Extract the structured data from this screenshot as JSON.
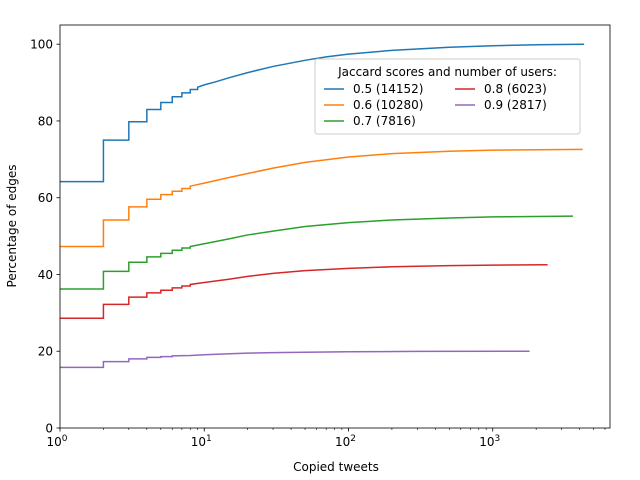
{
  "chart_data": {
    "type": "line",
    "step": true,
    "xscale": "log",
    "xlim": [
      1,
      6500
    ],
    "ylim": [
      0,
      105
    ],
    "xlabel": "Copied tweets",
    "ylabel": "Percentage of edges",
    "x_ticks": [
      {
        "value": 1,
        "base": "10",
        "exp": "0"
      },
      {
        "value": 10,
        "base": "10",
        "exp": "1"
      },
      {
        "value": 100,
        "base": "10",
        "exp": "2"
      },
      {
        "value": 1000,
        "base": "10",
        "exp": "3"
      }
    ],
    "y_ticks": [
      0,
      20,
      40,
      60,
      80,
      100
    ],
    "grid": false,
    "legend": {
      "title": "Jaccard scores and number of users:",
      "placement": "upper-right",
      "columns": 2
    },
    "series": [
      {
        "name": "0.5 (14152)",
        "color": "#1f77b4",
        "points": [
          [
            1,
            64.2
          ],
          [
            2,
            64.2
          ],
          [
            2,
            75
          ],
          [
            3,
            75
          ],
          [
            3,
            79.8
          ],
          [
            4,
            79.8
          ],
          [
            4,
            83
          ],
          [
            5,
            83
          ],
          [
            5,
            84.8
          ],
          [
            6,
            84.8
          ],
          [
            6,
            86.3
          ],
          [
            7,
            86.3
          ],
          [
            7,
            87.3
          ],
          [
            8,
            87.3
          ],
          [
            8,
            88.2
          ],
          [
            9,
            88.2
          ],
          [
            9,
            88.8
          ],
          [
            10,
            89.4
          ],
          [
            12,
            90.2
          ],
          [
            15,
            91.3
          ],
          [
            20,
            92.6
          ],
          [
            30,
            94.2
          ],
          [
            50,
            95.8
          ],
          [
            70,
            96.7
          ],
          [
            100,
            97.4
          ],
          [
            200,
            98.4
          ],
          [
            500,
            99.2
          ],
          [
            1000,
            99.6
          ],
          [
            2000,
            99.85
          ],
          [
            4300,
            100
          ]
        ]
      },
      {
        "name": "0.6 (10280)",
        "color": "#ff7f0e",
        "points": [
          [
            1,
            47.3
          ],
          [
            2,
            47.3
          ],
          [
            2,
            54.2
          ],
          [
            3,
            54.2
          ],
          [
            3,
            57.6
          ],
          [
            4,
            57.6
          ],
          [
            4,
            59.6
          ],
          [
            5,
            59.6
          ],
          [
            5,
            60.8
          ],
          [
            6,
            60.8
          ],
          [
            6,
            61.7
          ],
          [
            7,
            61.7
          ],
          [
            7,
            62.4
          ],
          [
            8,
            62.4
          ],
          [
            8,
            63
          ],
          [
            10,
            63.8
          ],
          [
            15,
            65.3
          ],
          [
            20,
            66.3
          ],
          [
            30,
            67.7
          ],
          [
            50,
            69.2
          ],
          [
            100,
            70.6
          ],
          [
            200,
            71.5
          ],
          [
            500,
            72.1
          ],
          [
            1000,
            72.4
          ],
          [
            4200,
            72.6
          ]
        ]
      },
      {
        "name": "0.7 (7816)",
        "color": "#2ca02c",
        "points": [
          [
            1,
            36.2
          ],
          [
            2,
            36.2
          ],
          [
            2,
            40.8
          ],
          [
            3,
            40.8
          ],
          [
            3,
            43.2
          ],
          [
            4,
            43.2
          ],
          [
            4,
            44.6
          ],
          [
            5,
            44.6
          ],
          [
            5,
            45.5
          ],
          [
            6,
            45.5
          ],
          [
            6,
            46.3
          ],
          [
            7,
            46.3
          ],
          [
            7,
            46.9
          ],
          [
            8,
            46.9
          ],
          [
            8,
            47.3
          ],
          [
            10,
            48
          ],
          [
            15,
            49.3
          ],
          [
            20,
            50.3
          ],
          [
            30,
            51.3
          ],
          [
            50,
            52.5
          ],
          [
            100,
            53.5
          ],
          [
            200,
            54.2
          ],
          [
            500,
            54.7
          ],
          [
            1000,
            55
          ],
          [
            3600,
            55.2
          ]
        ]
      },
      {
        "name": "0.8 (6023)",
        "color": "#d62728",
        "points": [
          [
            1,
            28.6
          ],
          [
            2,
            28.6
          ],
          [
            2,
            32.2
          ],
          [
            3,
            32.2
          ],
          [
            3,
            34.1
          ],
          [
            4,
            34.1
          ],
          [
            4,
            35.2
          ],
          [
            5,
            35.2
          ],
          [
            5,
            35.9
          ],
          [
            6,
            35.9
          ],
          [
            6,
            36.5
          ],
          [
            7,
            36.5
          ],
          [
            7,
            37
          ],
          [
            8,
            37
          ],
          [
            8,
            37.4
          ],
          [
            10,
            37.9
          ],
          [
            15,
            38.8
          ],
          [
            20,
            39.5
          ],
          [
            30,
            40.3
          ],
          [
            50,
            41.0
          ],
          [
            100,
            41.6
          ],
          [
            200,
            42.0
          ],
          [
            500,
            42.3
          ],
          [
            1000,
            42.45
          ],
          [
            2400,
            42.55
          ]
        ]
      },
      {
        "name": "0.9 (2817)",
        "color": "#9467bd",
        "points": [
          [
            1,
            15.8
          ],
          [
            2,
            15.8
          ],
          [
            2,
            17.3
          ],
          [
            3,
            17.3
          ],
          [
            3,
            18
          ],
          [
            4,
            18
          ],
          [
            4,
            18.4
          ],
          [
            5,
            18.4
          ],
          [
            5,
            18.6
          ],
          [
            6,
            18.6
          ],
          [
            6,
            18.8
          ],
          [
            8,
            18.9
          ],
          [
            10,
            19.1
          ],
          [
            15,
            19.35
          ],
          [
            20,
            19.5
          ],
          [
            30,
            19.65
          ],
          [
            50,
            19.75
          ],
          [
            100,
            19.85
          ],
          [
            300,
            19.95
          ],
          [
            1800,
            20.0
          ]
        ]
      }
    ]
  }
}
